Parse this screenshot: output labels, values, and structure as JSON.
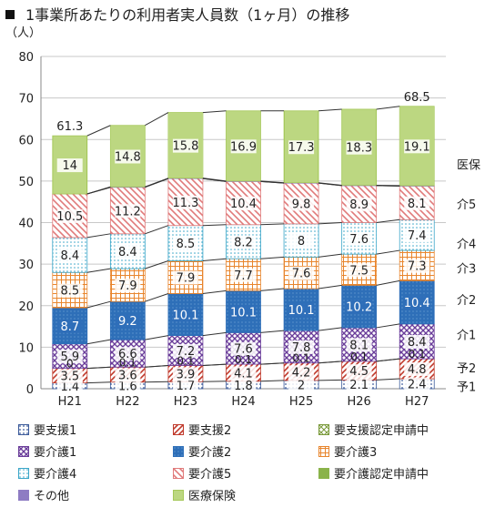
{
  "title": "1事業所あたりの利用者実人員数（1ヶ月）の推移",
  "colors": {
    "yoshien1": "#3b5a9a",
    "yoshien2": "#c0392b",
    "yoshien_shinsei": "#7a9a3a",
    "kaigo1": "#6a3d9a",
    "kaigo2": "#2e6fb8",
    "kaigo3": "#e8852c",
    "kaigo4": "#3aa6c8",
    "kaigo5": "#e07a7a",
    "kaigo_shinsei": "#8ab34a",
    "sonota": "#8e7cc3",
    "iryo": "#a5c85a"
  },
  "chart_data": {
    "type": "bar",
    "title": "1事業所あたりの利用者実人員数（1ヶ月）の推移",
    "ylabel": "（人）",
    "ylim": [
      0,
      80
    ],
    "yticks": [
      0,
      10,
      20,
      30,
      40,
      50,
      60,
      70,
      80
    ],
    "grid": true,
    "categories": [
      "H21",
      "H22",
      "H23",
      "H24",
      "H25",
      "H26",
      "H27"
    ],
    "series": [
      {
        "name": "要支援1",
        "key": "yoshien1",
        "values": [
          1.4,
          1.6,
          1.7,
          1.8,
          2,
          2.1,
          2.4
        ]
      },
      {
        "name": "要支援2",
        "key": "yoshien2",
        "values": [
          3.5,
          3.6,
          3.9,
          4.1,
          4.2,
          4.5,
          4.8
        ]
      },
      {
        "name": "要支援認定申請中",
        "key": "yoshien_shinsei",
        "values": [
          0,
          0,
          0,
          0,
          0,
          0,
          0
        ]
      },
      {
        "name": "要介護1",
        "key": "kaigo1",
        "values": [
          5.9,
          6.6,
          7.2,
          7.6,
          7.8,
          8.1,
          8.4
        ]
      },
      {
        "name": "要介護2",
        "key": "kaigo2",
        "values": [
          8.7,
          9.2,
          10.1,
          10.1,
          10.1,
          10.2,
          10.4
        ]
      },
      {
        "name": "要介護3",
        "key": "kaigo3",
        "values": [
          8.5,
          7.9,
          7.9,
          7.7,
          7.6,
          7.5,
          7.3
        ]
      },
      {
        "name": "要介護4",
        "key": "kaigo4",
        "values": [
          8.4,
          8.4,
          8.5,
          8.2,
          8,
          7.6,
          7.4
        ]
      },
      {
        "name": "要介護5",
        "key": "kaigo5",
        "values": [
          10.5,
          11.2,
          11.3,
          10.4,
          9.8,
          8.9,
          8.1
        ]
      },
      {
        "name": "要介護認定申請中",
        "key": "kaigo_shinsei",
        "values": [
          0,
          0,
          0,
          0,
          0,
          0,
          0
        ]
      },
      {
        "name": "その他",
        "key": "sonota",
        "values": [
          0,
          0.1,
          0.1,
          0.1,
          0.1,
          0.1,
          0.1
        ]
      },
      {
        "name": "医療保険",
        "key": "iryo",
        "values": [
          14,
          14.8,
          15.8,
          16.9,
          17.3,
          18.3,
          19.1
        ]
      }
    ],
    "value_labels": {
      "yoshien1": [
        "1.4",
        "1.6",
        "1.7",
        "1.8",
        "2",
        "2.1",
        "2.4"
      ],
      "yoshien2": [
        "3.5",
        "3.6",
        "3.9",
        "4.1",
        "4.2",
        "4.5",
        "4.8"
      ],
      "shinsei_small": [
        "0",
        "0.1",
        "0.1",
        "0.1",
        "0.1",
        "0.1",
        "0.1"
      ],
      "kaigo1": [
        "5.9",
        "6.6",
        "7.2",
        "7.6",
        "7.8",
        "8.1",
        "8.4"
      ],
      "kaigo2": [
        "8.7",
        "9.2",
        "10.1",
        "10.1",
        "10.1",
        "10.2",
        "10.4"
      ],
      "kaigo3": [
        "8.5",
        "7.9",
        "7.9",
        "7.7",
        "7.6",
        "7.5",
        "7.3"
      ],
      "kaigo4": [
        "8.4",
        "8.4",
        "8.5",
        "8.2",
        "8",
        "7.6",
        "7.4"
      ],
      "kaigo5": [
        "10.5",
        "11.2",
        "11.3",
        "10.4",
        "9.8",
        "8.9",
        "8.1"
      ],
      "iryo": [
        "14",
        "14.8",
        "15.8",
        "16.9",
        "17.3",
        "18.3",
        "19.1"
      ]
    },
    "totals": [
      "61.3",
      "",
      "",
      "",
      "",
      "",
      "68.5"
    ],
    "right_labels": [
      {
        "text": "医保",
        "y": 54
      },
      {
        "text": "介5",
        "y": 44.5
      },
      {
        "text": "介4",
        "y": 35
      },
      {
        "text": "介3",
        "y": 29
      },
      {
        "text": "介2",
        "y": 21.5
      },
      {
        "text": "介1",
        "y": 13
      },
      {
        "text": "予2",
        "y": 5
      },
      {
        "text": "予1",
        "y": 0.5
      }
    ],
    "legend": [
      {
        "label": "要支援1",
        "key": "yoshien1"
      },
      {
        "label": "要支援2",
        "key": "yoshien2"
      },
      {
        "label": "要支援認定申請中",
        "key": "yoshien_shinsei"
      },
      {
        "label": "要介護1",
        "key": "kaigo1"
      },
      {
        "label": "要介護2",
        "key": "kaigo2"
      },
      {
        "label": "要介護3",
        "key": "kaigo3"
      },
      {
        "label": "要介護4",
        "key": "kaigo4"
      },
      {
        "label": "要介護5",
        "key": "kaigo5"
      },
      {
        "label": "要介護認定申請中",
        "key": "kaigo_shinsei"
      },
      {
        "label": "その他",
        "key": "sonota"
      },
      {
        "label": "医療保険",
        "key": "iryo"
      }
    ]
  }
}
